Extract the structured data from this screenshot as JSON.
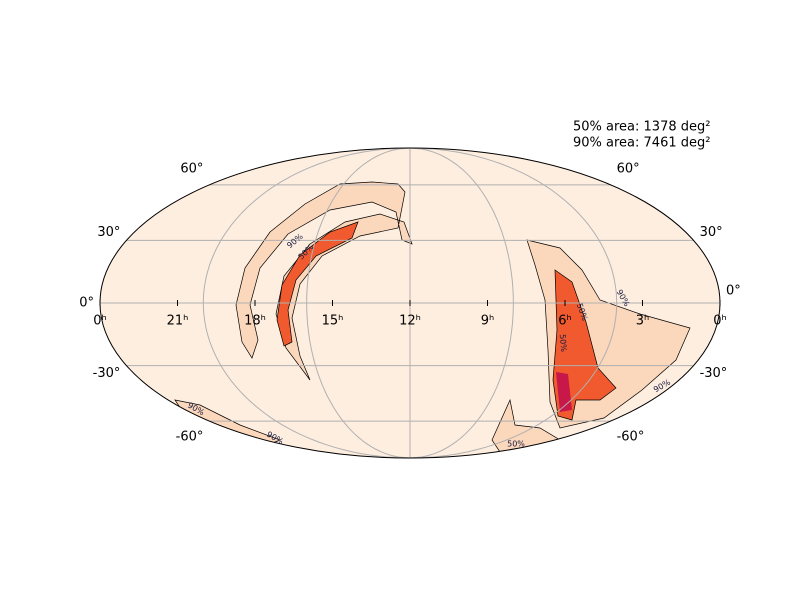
{
  "map": {
    "projection": "mollweide",
    "annotations": [
      "50% area: 1378 deg²",
      "90% area: 7461 deg²"
    ],
    "ra_ticks": [
      {
        "value": 24,
        "label": "0ʰ"
      },
      {
        "value": 21,
        "label": "21ʰ"
      },
      {
        "value": 18,
        "label": "18ʰ"
      },
      {
        "value": 15,
        "label": "15ʰ"
      },
      {
        "value": 12,
        "label": "12ʰ"
      },
      {
        "value": 9,
        "label": "9ʰ"
      },
      {
        "value": 6,
        "label": "6ʰ"
      },
      {
        "value": 3,
        "label": "3ʰ"
      },
      {
        "value": 0,
        "label": "0ʰ"
      }
    ],
    "dec_ticks": [
      {
        "value": 60,
        "label": "60°"
      },
      {
        "value": 30,
        "label": "30°"
      },
      {
        "value": 0,
        "label": "0°"
      },
      {
        "value": -30,
        "label": "-30°"
      },
      {
        "value": -60,
        "label": "-60°"
      }
    ],
    "contour_labels": [
      "90%",
      "50%",
      "50%",
      "50%",
      "90%",
      "90%",
      "90%",
      "50%",
      "90%"
    ],
    "grid": true
  }
}
